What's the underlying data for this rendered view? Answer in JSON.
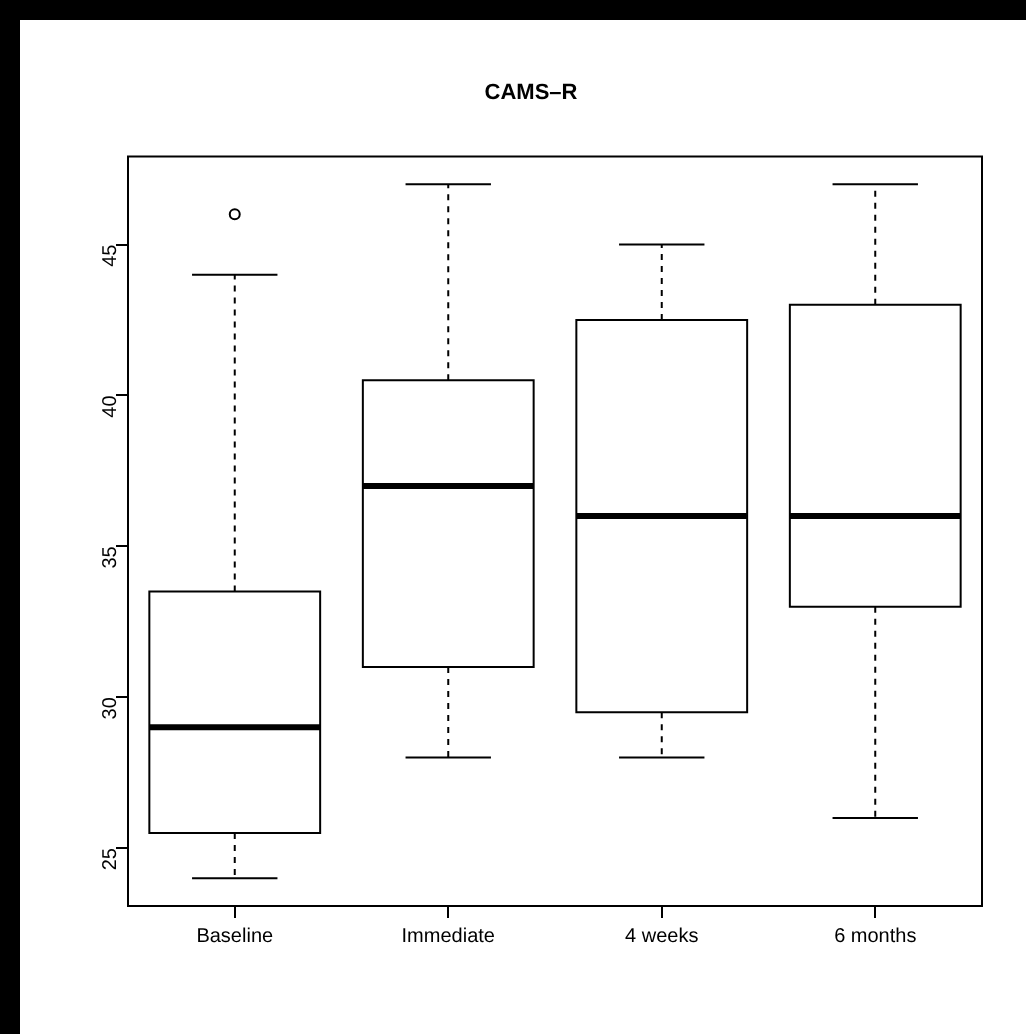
{
  "chart_data": {
    "type": "box",
    "title": "CAMS–R",
    "categories": [
      "Baseline",
      "Immediate",
      "4 weeks",
      "6 months"
    ],
    "boxes": [
      {
        "low": 24,
        "q1": 25.5,
        "median": 29,
        "q3": 33.5,
        "high": 44,
        "outliers": [
          46
        ]
      },
      {
        "low": 28,
        "q1": 31,
        "median": 37,
        "q3": 40.5,
        "high": 47
      },
      {
        "low": 28,
        "q1": 29.5,
        "median": 36,
        "q3": 42.5,
        "high": 45
      },
      {
        "low": 26,
        "q1": 33,
        "median": 36,
        "q3": 43,
        "high": 47
      }
    ],
    "ylim": [
      23.08,
      47.92
    ],
    "yticks": [
      25,
      30,
      35,
      40,
      45
    ],
    "grid": false,
    "legend": false
  }
}
